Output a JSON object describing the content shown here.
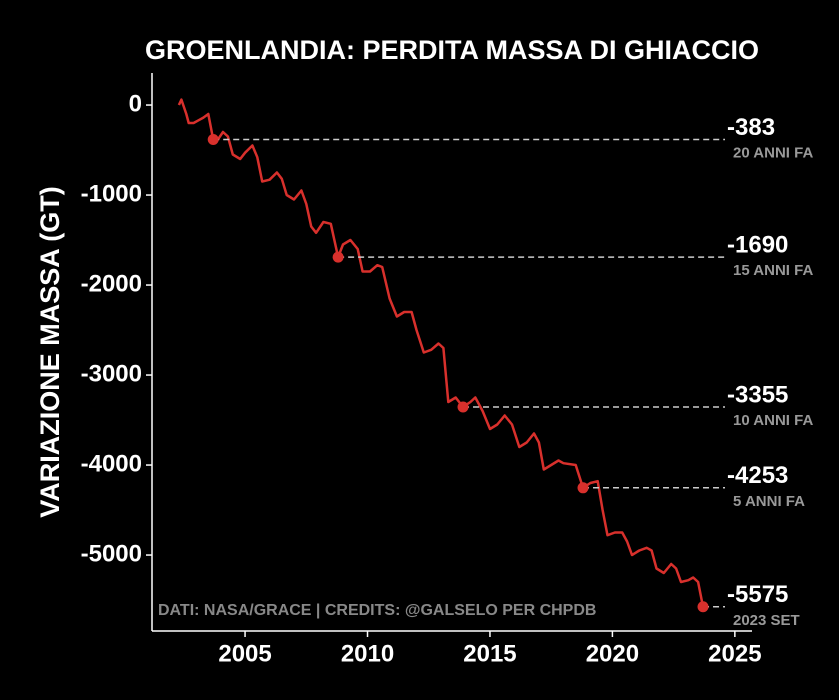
{
  "chart_data": {
    "type": "line",
    "title": "GROENLANDIA: PERDITA MASSA DI GHIACCIO",
    "ylabel": "VARIAZIONE MASSA (GT)",
    "source": "DATI: NASA/GRACE | CREDITS: @GALSELO PER CHPDB",
    "color": "#d8302c",
    "xlim": [
      2001.2,
      2025.7
    ],
    "xticks": [
      2005,
      2010,
      2015,
      2020,
      2025
    ],
    "ylim": [
      -5844,
      356
    ],
    "yticks": [
      0,
      -1000,
      -2000,
      -3000,
      -4000,
      -5000
    ],
    "x": [
      2002.3,
      2002.4,
      2002.6,
      2002.7,
      2002.9,
      2003.1,
      2003.3,
      2003.5,
      2003.7,
      2003.9,
      2004.1,
      2004.3,
      2004.5,
      2004.8,
      2005.0,
      2005.3,
      2005.5,
      2005.7,
      2006.0,
      2006.3,
      2006.5,
      2006.7,
      2007.0,
      2007.3,
      2007.5,
      2007.7,
      2007.9,
      2008.2,
      2008.5,
      2008.8,
      2009.0,
      2009.3,
      2009.6,
      2009.8,
      2010.1,
      2010.4,
      2010.6,
      2010.9,
      2011.2,
      2011.5,
      2011.8,
      2012.0,
      2012.3,
      2012.6,
      2012.9,
      2013.1,
      2013.3,
      2013.6,
      2013.9,
      2014.2,
      2014.4,
      2014.7,
      2015.0,
      2015.3,
      2015.6,
      2015.9,
      2016.2,
      2016.5,
      2016.8,
      2017.0,
      2017.2,
      2017.5,
      2017.8,
      2018.0,
      2018.5,
      2018.8,
      2019.1,
      2019.4,
      2019.6,
      2019.8,
      2020.1,
      2020.4,
      2020.6,
      2020.8,
      2021.1,
      2021.4,
      2021.6,
      2021.8,
      2022.1,
      2022.4,
      2022.6,
      2022.8,
      2023.1,
      2023.3,
      2023.5,
      2023.7
    ],
    "values": [
      0,
      60,
      -100,
      -200,
      -200,
      -170,
      -140,
      -100,
      -383,
      -380,
      -300,
      -350,
      -550,
      -600,
      -530,
      -450,
      -580,
      -850,
      -830,
      -750,
      -820,
      -1000,
      -1050,
      -950,
      -1100,
      -1350,
      -1420,
      -1300,
      -1320,
      -1690,
      -1550,
      -1500,
      -1600,
      -1850,
      -1850,
      -1780,
      -1800,
      -2150,
      -2350,
      -2300,
      -2300,
      -2500,
      -2750,
      -2720,
      -2650,
      -2700,
      -3300,
      -3250,
      -3355,
      -3300,
      -3250,
      -3400,
      -3600,
      -3550,
      -3450,
      -3550,
      -3800,
      -3750,
      -3650,
      -3750,
      -4050,
      -4000,
      -3950,
      -3980,
      -4000,
      -4253,
      -4200,
      -4180,
      -4500,
      -4780,
      -4750,
      -4750,
      -4850,
      -5000,
      -4950,
      -4920,
      -4950,
      -5150,
      -5200,
      -5100,
      -5150,
      -5300,
      -5280,
      -5250,
      -5300,
      -5575
    ],
    "markers": [
      {
        "x": 2003.7,
        "value": -383,
        "label": "20 ANNI FA"
      },
      {
        "x": 2008.8,
        "value": -1690,
        "label": "15 ANNI FA"
      },
      {
        "x": 2013.9,
        "value": -3355,
        "label": "10 ANNI FA"
      },
      {
        "x": 2018.8,
        "value": -4253,
        "label": "5 ANNI FA"
      },
      {
        "x": 2023.7,
        "value": -5575,
        "label": "2023 SET"
      }
    ]
  }
}
